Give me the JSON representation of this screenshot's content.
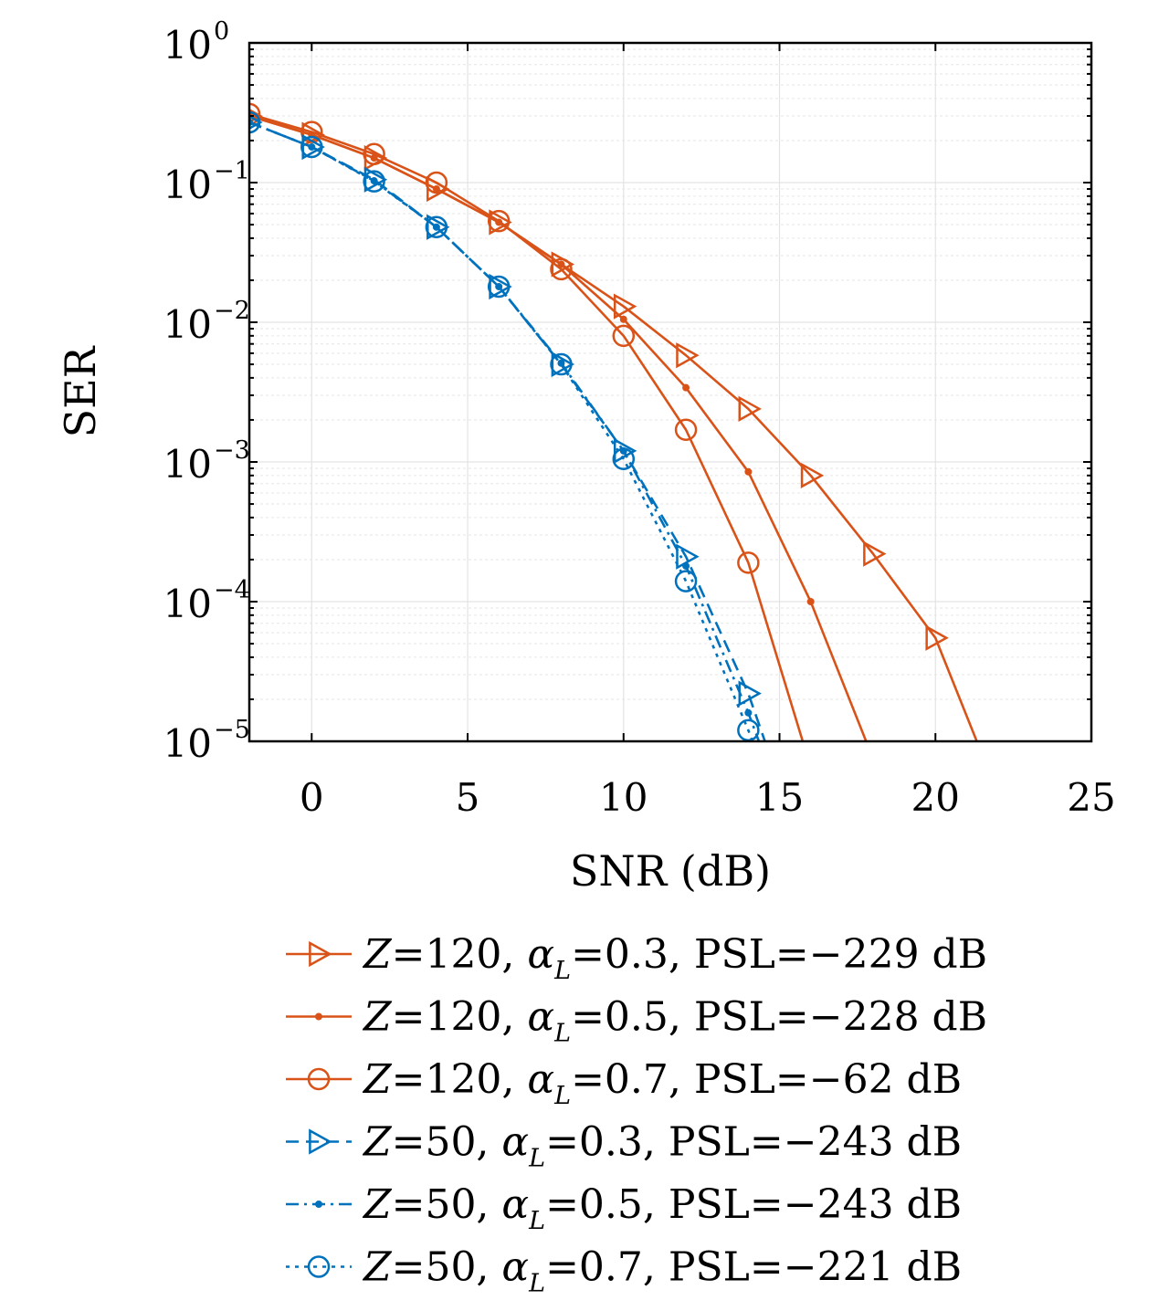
{
  "chart_data": {
    "type": "line",
    "xlabel": "SNR (dB)",
    "ylabel": "SER",
    "xlim": [
      -2,
      25
    ],
    "ylim": [
      1e-05,
      1
    ],
    "yscale": "log",
    "xticks": [
      "0",
      "5",
      "10",
      "15",
      "20",
      "25"
    ],
    "xtick_values": [
      0,
      5,
      10,
      15,
      20,
      25
    ],
    "ytick_base": "10",
    "ytick_exponents": [
      "0",
      "−1",
      "−2",
      "−3",
      "−4",
      "−5"
    ],
    "grid": true,
    "legend_position": "bottom",
    "series": [
      {
        "name": "Z=120, αL=0.3, PSL=−229 dB",
        "legend": {
          "z": "Z",
          "z_val": "=120, ",
          "alpha": "α",
          "sub": "L",
          "rest": "=0.3, PSL=−229 dB"
        },
        "color": "#D95319",
        "dash": "solid",
        "marker": "triangle-right",
        "x": [
          -2,
          0,
          2,
          4,
          6,
          8,
          10,
          12,
          14,
          16,
          18,
          20,
          21.5
        ],
        "y": [
          0.3,
          0.22,
          0.15,
          0.09,
          0.052,
          0.026,
          0.013,
          0.0058,
          0.0024,
          0.0008,
          0.00022,
          5.5e-05,
          8e-06
        ]
      },
      {
        "name": "Z=120, αL=0.5, PSL=−228 dB",
        "legend": {
          "z": "Z",
          "z_val": "=120, ",
          "alpha": "α",
          "sub": "L",
          "rest": "=0.5, PSL=−228 dB"
        },
        "color": "#D95319",
        "dash": "solid",
        "marker": "dot",
        "x": [
          -2,
          0,
          2,
          4,
          6,
          8,
          10,
          12,
          14,
          16,
          18
        ],
        "y": [
          0.3,
          0.22,
          0.15,
          0.09,
          0.052,
          0.026,
          0.0105,
          0.0034,
          0.00085,
          0.0001,
          7.5e-06
        ]
      },
      {
        "name": "Z=120, αL=0.7, PSL=−62 dB",
        "legend": {
          "z": "Z",
          "z_val": "=120, ",
          "alpha": "α",
          "sub": "L",
          "rest": "=0.7, PSL=−62 dB"
        },
        "color": "#D95319",
        "dash": "solid",
        "marker": "circle",
        "x": [
          -2,
          0,
          2,
          4,
          6,
          8,
          10,
          12,
          14,
          16
        ],
        "y": [
          0.31,
          0.23,
          0.16,
          0.1,
          0.053,
          0.024,
          0.008,
          0.0017,
          0.00019,
          6.5e-06
        ]
      },
      {
        "name": "Z=50, αL=0.3, PSL=−243 dB",
        "legend": {
          "z": "Z",
          "z_val": "=50, ",
          "alpha": "α",
          "sub": "L",
          "rest": "=0.3, PSL=−243 dB"
        },
        "color": "#0072BD",
        "dash": "dashed",
        "marker": "triangle-right",
        "x": [
          -2,
          0,
          2,
          4,
          6,
          8,
          10,
          12,
          14,
          15
        ],
        "y": [
          0.27,
          0.18,
          0.105,
          0.048,
          0.018,
          0.005,
          0.0012,
          0.00021,
          2.2e-05,
          5e-06
        ]
      },
      {
        "name": "Z=50, αL=0.5, PSL=−243 dB",
        "legend": {
          "z": "Z",
          "z_val": "=50, ",
          "alpha": "α",
          "sub": "L",
          "rest": "=0.5, PSL=−243 dB"
        },
        "color": "#0072BD",
        "dash": "dashdot",
        "marker": "dot",
        "x": [
          -2,
          0,
          2,
          4,
          6,
          8,
          10,
          12,
          14,
          15
        ],
        "y": [
          0.27,
          0.18,
          0.103,
          0.048,
          0.018,
          0.0051,
          0.0012,
          0.00018,
          1.6e-05,
          4e-06
        ]
      },
      {
        "name": "Z=50, αL=0.7, PSL=−221 dB",
        "legend": {
          "z": "Z",
          "z_val": "=50, ",
          "alpha": "α",
          "sub": "L",
          "rest": "=0.7, PSL=−221 dB"
        },
        "color": "#0072BD",
        "dash": "dotted",
        "marker": "circle",
        "x": [
          -2,
          0,
          2,
          4,
          6,
          8,
          10,
          12,
          14,
          14.8
        ],
        "y": [
          0.27,
          0.18,
          0.102,
          0.048,
          0.018,
          0.005,
          0.00105,
          0.00014,
          1.2e-05,
          4e-06
        ]
      }
    ]
  }
}
